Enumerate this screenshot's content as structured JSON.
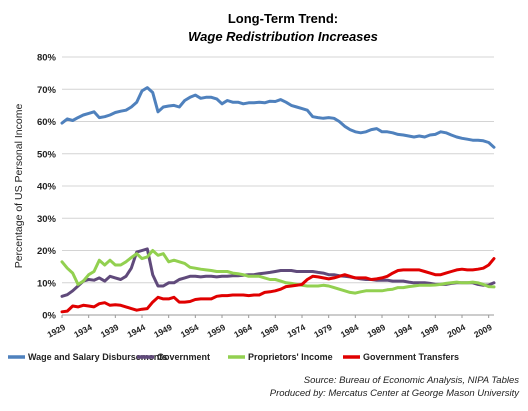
{
  "chart_data": {
    "type": "line",
    "title": "Long-Term Trend:",
    "subtitle": "Wage Redistribution Increases",
    "ylabel": "Percentage of US Personal Income",
    "xlabel": "",
    "ylim": [
      0,
      80
    ],
    "y_ticks": [
      "0%",
      "10%",
      "20%",
      "30%",
      "40%",
      "50%",
      "60%",
      "70%",
      "80%"
    ],
    "x_ticks": [
      "1929",
      "1934",
      "1939",
      "1944",
      "1949",
      "1954",
      "1959",
      "1964",
      "1969",
      "1974",
      "1979",
      "1984",
      "1989",
      "1994",
      "1999",
      "2004",
      "2009"
    ],
    "x": [
      1929,
      1930,
      1931,
      1932,
      1933,
      1934,
      1935,
      1936,
      1937,
      1938,
      1939,
      1940,
      1941,
      1942,
      1943,
      1944,
      1945,
      1946,
      1947,
      1948,
      1949,
      1950,
      1951,
      1952,
      1953,
      1954,
      1955,
      1956,
      1957,
      1958,
      1959,
      1960,
      1961,
      1962,
      1963,
      1964,
      1965,
      1966,
      1967,
      1968,
      1969,
      1970,
      1971,
      1972,
      1973,
      1974,
      1975,
      1976,
      1977,
      1978,
      1979,
      1980,
      1981,
      1982,
      1983,
      1984,
      1985,
      1986,
      1987,
      1988,
      1989,
      1990,
      1991,
      1992,
      1993,
      1994,
      1995,
      1996,
      1997,
      1998,
      1999,
      2000,
      2001,
      2002,
      2003,
      2004,
      2005,
      2006,
      2007,
      2008,
      2009,
      2010
    ],
    "grid": true,
    "legend_position": "bottom",
    "series": [
      {
        "name": "Wage and Salary Disbursements",
        "color": "#4f81bd",
        "values": [
          59.5,
          60.8,
          60.3,
          61.2,
          62.0,
          62.5,
          63.0,
          61.2,
          61.5,
          62.0,
          62.8,
          63.2,
          63.5,
          64.5,
          66.0,
          69.5,
          70.5,
          69.0,
          63.0,
          64.5,
          64.8,
          65.0,
          64.5,
          66.5,
          67.5,
          68.2,
          67.2,
          67.5,
          67.5,
          67.0,
          65.5,
          66.5,
          66.0,
          66.0,
          65.5,
          65.8,
          65.8,
          66.0,
          65.8,
          66.3,
          66.2,
          66.8,
          66.0,
          65.0,
          64.5,
          64.0,
          63.5,
          61.5,
          61.2,
          61.0,
          61.2,
          61.0,
          60.0,
          58.5,
          57.5,
          56.8,
          56.5,
          56.8,
          57.5,
          57.8,
          56.8,
          56.8,
          56.5,
          56.0,
          55.8,
          55.5,
          55.2,
          55.5,
          55.2,
          55.8,
          56.0,
          56.8,
          56.5,
          55.8,
          55.2,
          54.8,
          54.5,
          54.2,
          54.2,
          54.0,
          53.5,
          52.0
        ]
      },
      {
        "name": "Government",
        "color": "#604a7b",
        "values": [
          5.8,
          6.3,
          7.5,
          9.0,
          10.5,
          11.0,
          10.8,
          11.5,
          10.5,
          12.0,
          11.5,
          11.0,
          12.0,
          14.5,
          19.5,
          20.0,
          20.5,
          12.5,
          9.0,
          9.0,
          10.0,
          10.0,
          11.0,
          11.5,
          12.0,
          12.0,
          11.8,
          12.0,
          12.0,
          11.8,
          12.0,
          12.0,
          12.2,
          12.2,
          12.3,
          12.5,
          12.5,
          12.8,
          13.0,
          13.2,
          13.5,
          13.8,
          13.8,
          13.8,
          13.5,
          13.5,
          13.5,
          13.5,
          13.2,
          13.0,
          12.5,
          12.5,
          12.2,
          12.0,
          11.8,
          11.5,
          11.2,
          11.0,
          11.0,
          10.8,
          10.8,
          10.8,
          10.5,
          10.5,
          10.5,
          10.2,
          10.0,
          10.0,
          10.0,
          9.8,
          9.5,
          9.5,
          9.5,
          9.8,
          10.0,
          10.0,
          10.0,
          10.0,
          9.5,
          9.2,
          9.3,
          10.0
        ]
      },
      {
        "name": "Proprietors' Income",
        "color": "#92d050",
        "values": [
          16.5,
          14.5,
          13.0,
          9.5,
          10.5,
          12.5,
          13.5,
          17.0,
          15.5,
          17.0,
          15.5,
          15.5,
          16.5,
          17.8,
          19.0,
          17.5,
          18.0,
          20.0,
          18.5,
          19.0,
          16.5,
          17.0,
          16.5,
          16.0,
          14.8,
          14.5,
          14.2,
          14.0,
          13.8,
          13.5,
          13.5,
          13.5,
          13.0,
          12.8,
          12.5,
          12.0,
          12.0,
          12.0,
          11.5,
          11.0,
          11.0,
          10.5,
          10.0,
          9.8,
          9.5,
          9.2,
          9.0,
          9.0,
          9.0,
          9.2,
          9.0,
          8.5,
          8.0,
          7.5,
          7.0,
          6.8,
          7.2,
          7.5,
          7.5,
          7.5,
          7.5,
          7.8,
          8.0,
          8.5,
          8.5,
          8.8,
          9.0,
          9.2,
          9.2,
          9.2,
          9.3,
          9.5,
          9.8,
          10.0,
          10.2,
          10.0,
          10.0,
          10.2,
          10.0,
          9.5,
          8.8,
          8.7
        ]
      },
      {
        "name": "Government Transfers",
        "color": "#e00000",
        "values": [
          1.0,
          1.2,
          2.8,
          2.5,
          3.0,
          2.8,
          2.5,
          3.5,
          3.8,
          3.0,
          3.2,
          3.0,
          2.5,
          2.0,
          1.5,
          1.8,
          2.0,
          4.0,
          5.5,
          5.0,
          5.0,
          5.5,
          4.0,
          4.0,
          4.2,
          4.8,
          5.0,
          5.0,
          5.0,
          5.8,
          6.0,
          6.0,
          6.2,
          6.2,
          6.2,
          6.0,
          6.2,
          6.2,
          7.0,
          7.2,
          7.5,
          8.0,
          8.8,
          9.0,
          9.2,
          9.5,
          11.0,
          12.0,
          11.8,
          11.5,
          11.2,
          11.5,
          12.0,
          12.5,
          12.0,
          11.5,
          11.5,
          11.5,
          11.0,
          11.2,
          11.5,
          12.0,
          13.0,
          13.8,
          14.0,
          14.0,
          14.0,
          14.0,
          13.5,
          13.0,
          12.5,
          12.5,
          13.0,
          13.5,
          14.0,
          14.2,
          14.0,
          14.0,
          14.2,
          14.5,
          15.5,
          17.5
        ]
      }
    ],
    "source_line": "Source:  Bureau of Economic Analysis, NIPA Tables",
    "producer_line": "Produced by: Mercatus Center at George Mason University"
  }
}
